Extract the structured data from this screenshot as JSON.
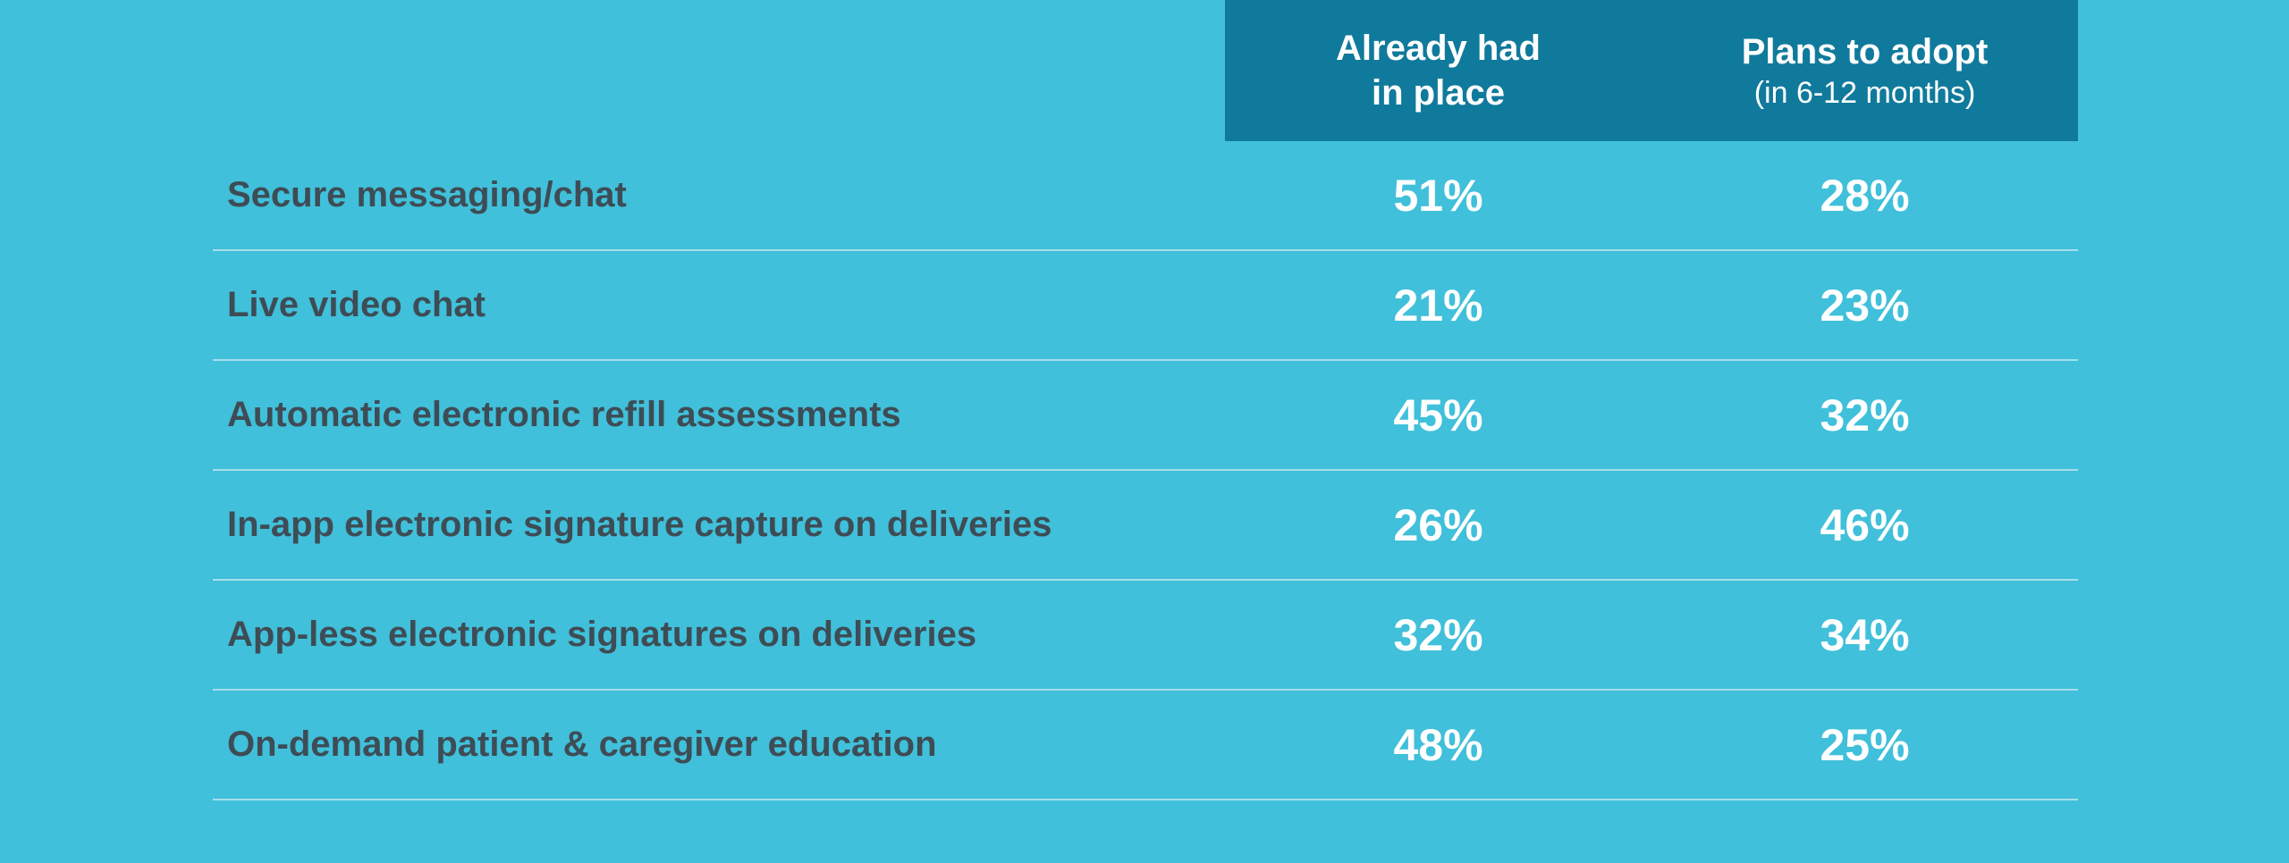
{
  "chart_data": {
    "type": "table",
    "columns": [
      {
        "title": "Already had\nin place",
        "subtitle": ""
      },
      {
        "title": "Plans to adopt",
        "subtitle": "(in 6-12 months)"
      }
    ],
    "rows": [
      {
        "label": "Secure messaging/chat",
        "values": [
          "51%",
          "28%"
        ]
      },
      {
        "label": "Live video chat",
        "values": [
          "21%",
          "23%"
        ]
      },
      {
        "label": "Automatic electronic refill assessments",
        "values": [
          "45%",
          "32%"
        ]
      },
      {
        "label": "In-app electronic signature capture on deliveries",
        "values": [
          "26%",
          "46%"
        ]
      },
      {
        "label": "App-less electronic signatures on deliveries",
        "values": [
          "32%",
          "34%"
        ]
      },
      {
        "label": "On-demand patient & caregiver education",
        "values": [
          "48%",
          "25%"
        ]
      }
    ]
  },
  "colors": {
    "background": "#40c0da",
    "header_band": "#107a9c",
    "label_text": "#3e4c55",
    "value_text": "#ffffff",
    "divider": "#a7dfeb"
  }
}
